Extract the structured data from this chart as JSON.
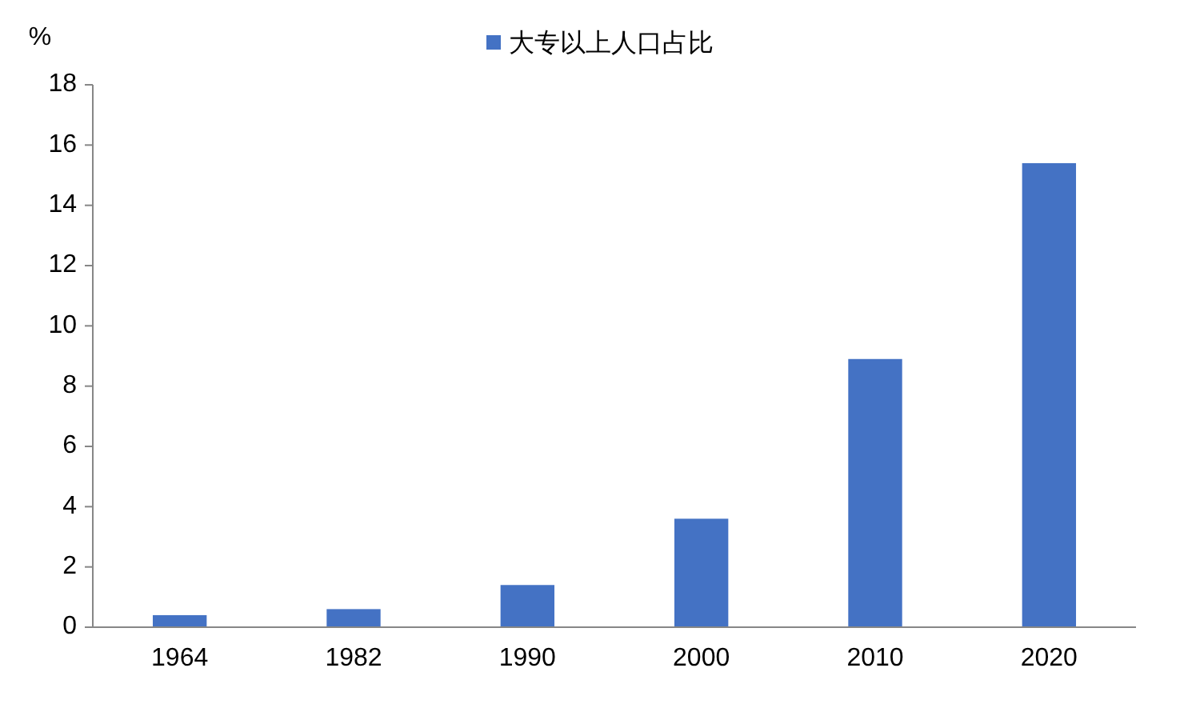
{
  "chart_data": {
    "type": "bar",
    "ylabel": "%",
    "categories": [
      "1964",
      "1982",
      "1990",
      "2000",
      "2010",
      "2020"
    ],
    "series": [
      {
        "name": "大专以上人口占比",
        "color": "#4472c4",
        "values": [
          0.4,
          0.6,
          1.4,
          3.6,
          8.9,
          15.4
        ]
      }
    ],
    "ylim": [
      0,
      18
    ],
    "yticks": [
      0,
      2,
      4,
      6,
      8,
      10,
      12,
      14,
      16,
      18
    ],
    "legend": "top",
    "grid": false
  }
}
